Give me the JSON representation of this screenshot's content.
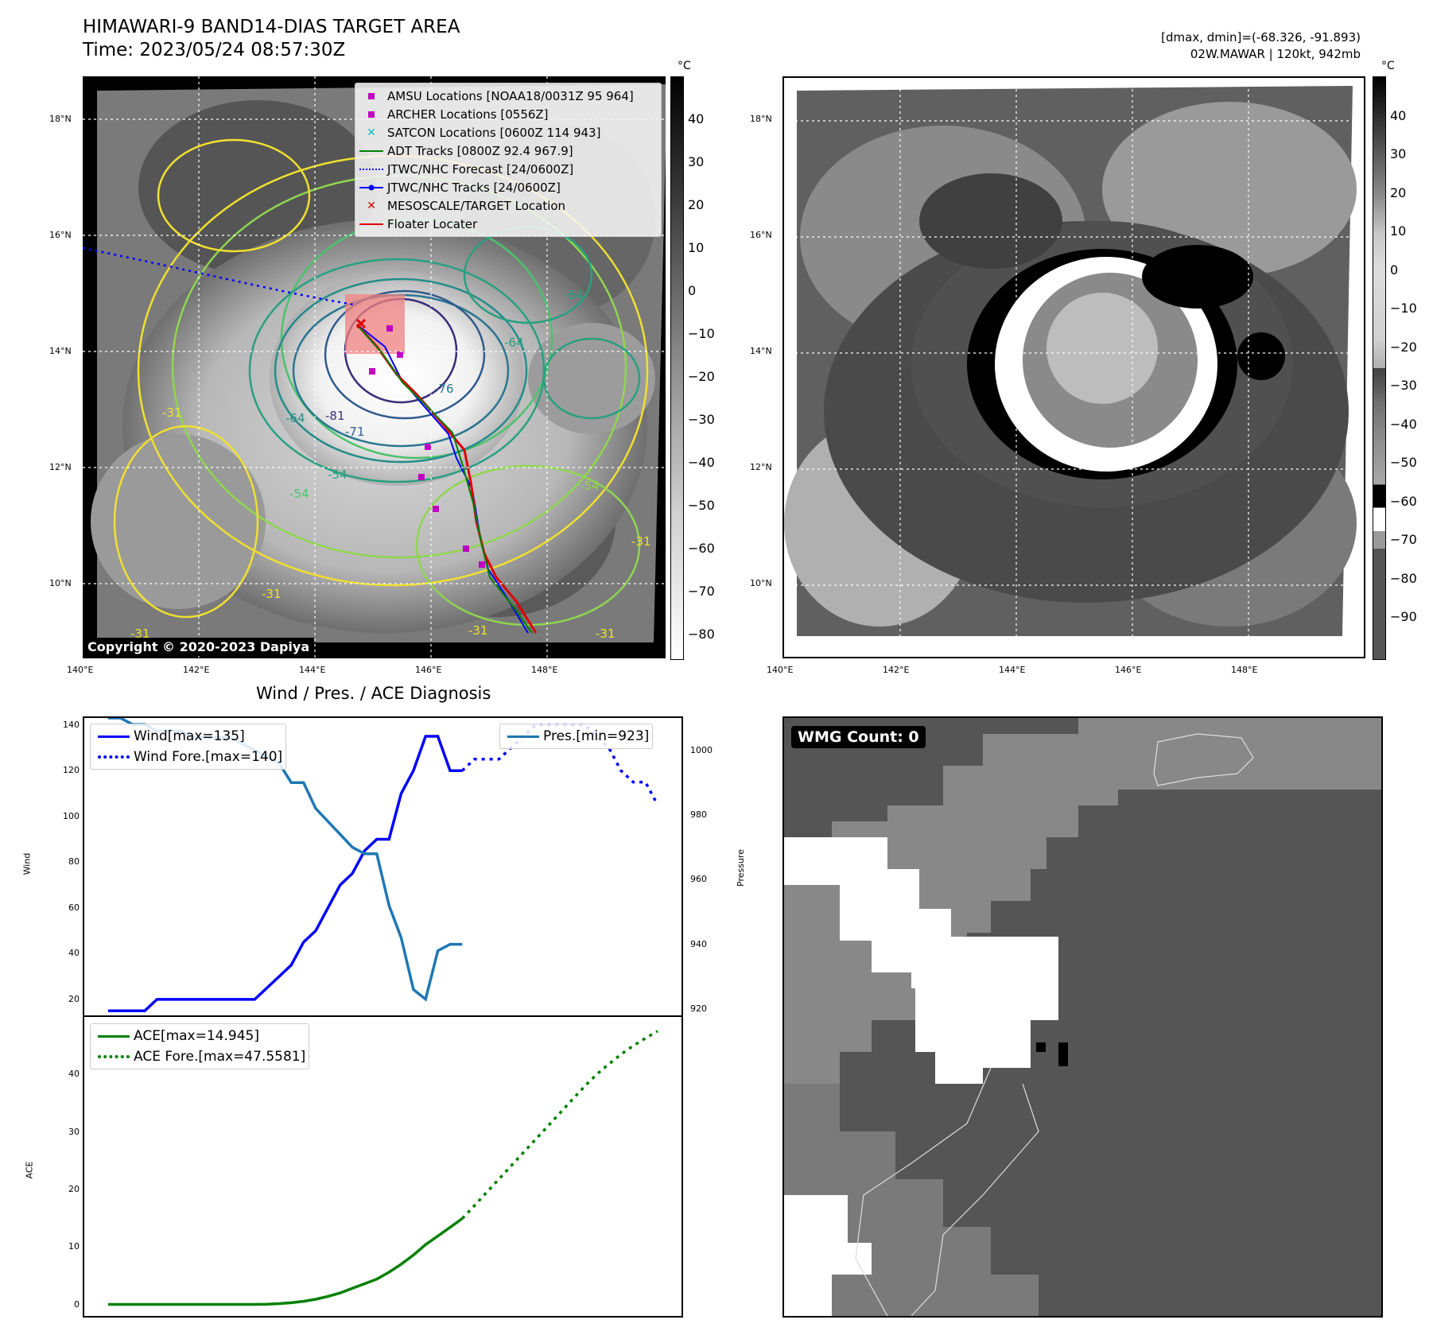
{
  "header": {
    "title": "HIMAWARI-9 BAND14-DIAS TARGET AREA",
    "time": "Time: 2023/05/24 08:57:30Z",
    "range_info": "[dmax, dmin]=(-68.326, -91.893)",
    "storm_info": "02W.MAWAR | 120kt, 942mb"
  },
  "map_left": {
    "unit": "°C",
    "lat_ticks": [
      "18°N",
      "16°N",
      "14°N",
      "12°N",
      "10°N"
    ],
    "lon_ticks": [
      "140°E",
      "142°E",
      "144°E",
      "146°E",
      "148°E"
    ],
    "colorbar_ticks": [
      "40",
      "30",
      "20",
      "10",
      "0",
      "−10",
      "−20",
      "−30",
      "−40",
      "−50",
      "−60",
      "−70",
      "−80"
    ],
    "copyright": "Copyright © 2020-2023 Dapiya",
    "legend": [
      {
        "label": "AMSU Locations [NOAA18/0031Z 95 964]",
        "color": "#c000c0",
        "symbol": "square"
      },
      {
        "label": "ARCHER Locations [0556Z]",
        "color": "#c000c0",
        "symbol": "square"
      },
      {
        "label": "SATCON Locations [0600Z 114 943]",
        "color": "#00bcbc",
        "symbol": "x"
      },
      {
        "label": "ADT Tracks [0800Z 92.4 967.9]",
        "color": "#008000",
        "symbol": "line"
      },
      {
        "label": "JTWC/NHC Forecast [24/0600Z]",
        "color": "#0000ff",
        "symbol": "dotted"
      },
      {
        "label": "JTWC/NHC Tracks [24/0600Z]",
        "color": "#0000ff",
        "symbol": "line-dot"
      },
      {
        "label": "MESOSCALE/TARGET Location",
        "color": "#e00000",
        "symbol": "x"
      },
      {
        "label": "Floater Locater",
        "color": "#e00000",
        "symbol": "line"
      }
    ],
    "contour_labels": [
      "-81",
      "-76",
      "-71",
      "-64",
      "-54",
      "-31",
      "-31",
      "-31",
      "-31",
      "-31",
      "-64",
      "-54",
      "-54",
      "-31",
      "-64"
    ]
  },
  "map_right": {
    "unit": "°C",
    "lat_ticks": [
      "18°N",
      "16°N",
      "14°N",
      "12°N",
      "10°N"
    ],
    "lon_ticks": [
      "140°E",
      "142°E",
      "144°E",
      "146°E",
      "148°E"
    ],
    "colorbar_ticks": [
      "40",
      "30",
      "20",
      "10",
      "0",
      "−10",
      "−20",
      "−30",
      "−40",
      "−50",
      "−60",
      "−70",
      "−80",
      "−90"
    ]
  },
  "diagnosis": {
    "title": "Wind / Pres. / ACE Diagnosis",
    "wind_ylabel": "Wind",
    "pres_ylabel": "Pressure",
    "ace_ylabel": "ACE",
    "wind_legend": [
      "Wind[max=135]",
      "Wind Fore.[max=140]"
    ],
    "pres_legend": "Pres.[min=923]",
    "ace_legend": [
      "ACE[max=14.945]",
      "ACE Fore.[max=47.5581]"
    ],
    "wind_ticks": [
      "140",
      "120",
      "100",
      "80",
      "60",
      "40",
      "20"
    ],
    "pres_ticks": [
      "1000",
      "980",
      "960",
      "940",
      "920"
    ],
    "ace_ticks": [
      "40",
      "30",
      "20",
      "10",
      "0"
    ]
  },
  "wmg": {
    "label": "WMG Count: 0"
  },
  "chart_data": [
    {
      "type": "line",
      "title": "Wind / Pres. / ACE Diagnosis",
      "ylabel": "Wind",
      "ylim": [
        13,
        143
      ],
      "series": [
        {
          "name": "Wind[max=135]",
          "color": "#0000ff",
          "style": "solid",
          "x": [
            0,
            1,
            2,
            3,
            4,
            5,
            6,
            7,
            8,
            9,
            10,
            11,
            12,
            13,
            14,
            15,
            16,
            17,
            18,
            19,
            20,
            21,
            22,
            23,
            24,
            25,
            26,
            27,
            28,
            29
          ],
          "values": [
            15,
            15,
            15,
            15,
            20,
            20,
            20,
            20,
            20,
            20,
            20,
            20,
            20,
            25,
            30,
            35,
            45,
            50,
            60,
            70,
            75,
            85,
            90,
            90,
            110,
            120,
            135,
            135,
            120,
            120
          ]
        },
        {
          "name": "Wind Fore.[max=140]",
          "color": "#0000ff",
          "style": "dotted",
          "x": [
            29,
            30,
            31,
            32,
            33,
            34,
            35,
            36,
            37,
            38,
            39,
            40,
            41,
            42,
            43,
            44,
            45
          ],
          "values": [
            120,
            125,
            125,
            125,
            130,
            135,
            140,
            140,
            140,
            140,
            140,
            135,
            130,
            120,
            115,
            115,
            105
          ]
        }
      ]
    },
    {
      "type": "line",
      "ylabel": "Pressure",
      "ylim": [
        918,
        1010
      ],
      "series": [
        {
          "name": "Pres.[min=923]",
          "color": "#1f77b4",
          "style": "solid",
          "x": [
            0,
            1,
            2,
            3,
            4,
            5,
            6,
            7,
            8,
            9,
            10,
            11,
            12,
            13,
            14,
            15,
            16,
            17,
            18,
            19,
            20,
            21,
            22,
            23,
            24,
            25,
            26,
            27,
            28,
            29
          ],
          "values": [
            1010,
            1010,
            1008,
            1008,
            1006,
            1006,
            1006,
            1004,
            1004,
            1004,
            1004,
            1002,
            1000,
            998,
            996,
            990,
            990,
            982,
            978,
            974,
            970,
            968,
            968,
            952,
            942,
            926,
            923,
            938,
            940,
            940
          ]
        }
      ]
    },
    {
      "type": "line",
      "ylabel": "ACE",
      "ylim": [
        -2,
        50
      ],
      "series": [
        {
          "name": "ACE[max=14.945]",
          "color": "#008000",
          "style": "solid",
          "x": [
            0,
            2,
            4,
            6,
            8,
            10,
            12,
            13,
            14,
            15,
            16,
            17,
            18,
            19,
            20,
            21,
            22,
            23,
            24,
            25,
            26,
            27,
            28,
            29
          ],
          "values": [
            0,
            0,
            0,
            0,
            0,
            0,
            0,
            0.05,
            0.15,
            0.3,
            0.55,
            0.9,
            1.4,
            2.0,
            2.8,
            3.6,
            4.4,
            5.6,
            7.0,
            8.6,
            10.4,
            11.9,
            13.4,
            14.945
          ]
        },
        {
          "name": "ACE Fore.[max=47.5581]",
          "color": "#008000",
          "style": "dotted",
          "x": [
            29,
            30,
            31,
            32,
            33,
            34,
            35,
            36,
            37,
            38,
            39,
            40,
            41,
            42,
            43,
            44,
            45
          ],
          "values": [
            14.945,
            17.2,
            19.5,
            21.8,
            24.1,
            26.4,
            28.7,
            31.0,
            33.3,
            35.6,
            37.9,
            40.0,
            41.8,
            43.5,
            45.0,
            46.3,
            47.5581
          ]
        }
      ]
    }
  ]
}
